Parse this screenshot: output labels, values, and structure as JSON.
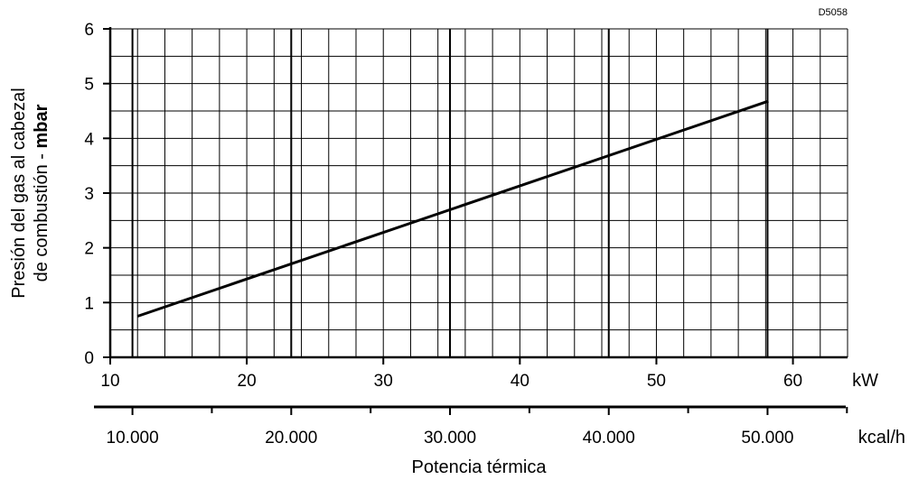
{
  "figure_code": "D5058",
  "chart_data": {
    "type": "line",
    "ylabel_line1": "Presión del gas al cabezal",
    "ylabel_line2_prefix": "de combustión - ",
    "ylabel_line2_unit": "mbar",
    "xlabel": "Potencia térmica",
    "x_unit": "kW",
    "x2_unit": "kcal/h",
    "xlim": [
      10,
      64
    ],
    "ylim": [
      0,
      6
    ],
    "grid": true,
    "x_ticks": [
      "10",
      "20",
      "30",
      "40",
      "50",
      "60"
    ],
    "x_tick_values": [
      10,
      20,
      30,
      40,
      50,
      60
    ],
    "y_ticks": [
      "0",
      "1",
      "2",
      "3",
      "4",
      "5",
      "6"
    ],
    "y_tick_values": [
      0,
      1,
      2,
      3,
      4,
      5,
      6
    ],
    "x2_ticks": [
      "10.000",
      "20.000",
      "30.000",
      "40.000",
      "50.000"
    ],
    "x2_tick_values": [
      10000,
      20000,
      30000,
      40000,
      50000
    ],
    "kcal_per_kw": 860,
    "series": [
      {
        "x": [
          12,
          58.2
        ],
        "y": [
          0.75,
          4.68
        ],
        "color": "#000000"
      }
    ]
  }
}
